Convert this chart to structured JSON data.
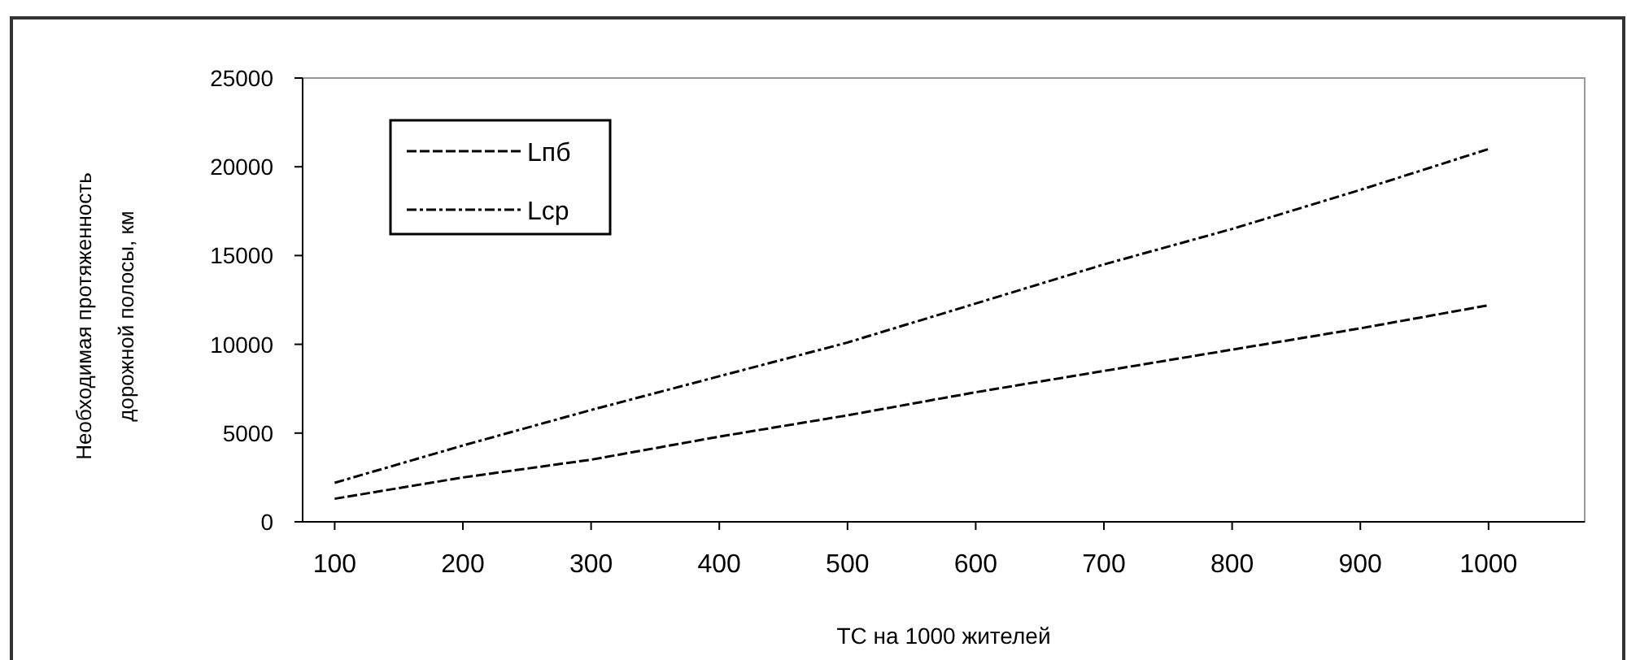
{
  "chart_data": {
    "type": "line",
    "xlabel": "ТС на 1000 жителей",
    "ylabel": "Необходимая протяженность дорожной полосы, км",
    "x": [
      100,
      200,
      300,
      400,
      500,
      600,
      700,
      800,
      900,
      1000
    ],
    "series": [
      {
        "name": "Lпб",
        "color": "#000000",
        "line_style": "dashed",
        "values": [
          1300,
          2500,
          3500,
          4800,
          6000,
          7300,
          8500,
          9700,
          10900,
          12200
        ]
      },
      {
        "name": "Lср",
        "color": "#000000",
        "line_style": "dashdot",
        "values": [
          2200,
          4300,
          6300,
          8200,
          10100,
          12300,
          14500,
          16500,
          18700,
          21000
        ]
      }
    ],
    "xlim": [
      75,
      1075
    ],
    "xticks": [
      100,
      200,
      300,
      400,
      500,
      600,
      700,
      800,
      900,
      1000
    ],
    "ylim": [
      0,
      25000
    ],
    "yticks": [
      0,
      5000,
      10000,
      15000,
      20000,
      25000
    ],
    "legend": "top left",
    "grid": false,
    "marker": "none"
  }
}
